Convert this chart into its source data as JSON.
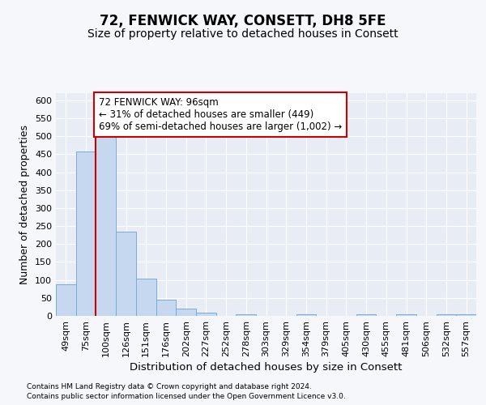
{
  "title": "72, FENWICK WAY, CONSETT, DH8 5FE",
  "subtitle": "Size of property relative to detached houses in Consett",
  "xlabel": "Distribution of detached houses by size in Consett",
  "ylabel": "Number of detached properties",
  "bar_labels": [
    "49sqm",
    "75sqm",
    "100sqm",
    "126sqm",
    "151sqm",
    "176sqm",
    "202sqm",
    "227sqm",
    "252sqm",
    "278sqm",
    "303sqm",
    "329sqm",
    "354sqm",
    "379sqm",
    "405sqm",
    "430sqm",
    "455sqm",
    "481sqm",
    "506sqm",
    "532sqm",
    "557sqm"
  ],
  "bar_values": [
    88,
    457,
    500,
    235,
    103,
    45,
    20,
    10,
    0,
    5,
    0,
    0,
    4,
    0,
    0,
    4,
    0,
    4,
    0,
    4,
    4
  ],
  "bar_color": "#c5d8f0",
  "bar_edge_color": "#7aadd4",
  "vline_color": "#cc0000",
  "vline_index": 2,
  "ylim_max": 620,
  "yticks": [
    0,
    50,
    100,
    150,
    200,
    250,
    300,
    350,
    400,
    450,
    500,
    550,
    600
  ],
  "annotation_line1": "72 FENWICK WAY: 96sqm",
  "annotation_line2": "← 31% of detached houses are smaller (449)",
  "annotation_line3": "69% of semi-detached houses are larger (1,002) →",
  "annotation_box_facecolor": "#ffffff",
  "annotation_border_color": "#cc0000",
  "background_color": "#f5f7fa",
  "plot_bg_color": "#e8edf5",
  "grid_color": "#ffffff",
  "title_fontsize": 12,
  "subtitle_fontsize": 10,
  "tick_fontsize": 8,
  "ylabel_fontsize": 9,
  "xlabel_fontsize": 9.5,
  "footer_line1": "Contains HM Land Registry data © Crown copyright and database right 2024.",
  "footer_line2": "Contains public sector information licensed under the Open Government Licence v3.0."
}
